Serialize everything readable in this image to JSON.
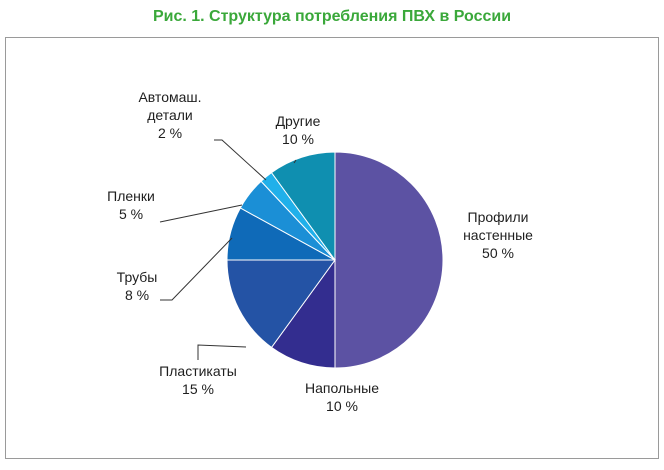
{
  "title": "Рис. 1. Структура потребления ПВХ в России",
  "chart_data": {
    "type": "pie",
    "title": "Рис. 1. Структура потребления ПВХ в России",
    "slices": [
      {
        "label_lines": [
          "Профили",
          "настенные"
        ],
        "value_text": "50 %",
        "value": 50,
        "color": "#5c52a3"
      },
      {
        "label_lines": [
          "Напольные"
        ],
        "value_text": "10 %",
        "value": 10,
        "color": "#332d8f"
      },
      {
        "label_lines": [
          "Пластикаты"
        ],
        "value_text": "15 %",
        "value": 15,
        "color": "#2453a5"
      },
      {
        "label_lines": [
          "Трубы"
        ],
        "value_text": "8 %",
        "value": 8,
        "color": "#0f6ab8"
      },
      {
        "label_lines": [
          "Пленки"
        ],
        "value_text": "5 %",
        "value": 5,
        "color": "#1b8fd6"
      },
      {
        "label_lines": [
          "Автомаш.",
          "детали"
        ],
        "value_text": "2 %",
        "value": 2,
        "color": "#20b0ea"
      },
      {
        "label_lines": [
          "Другие"
        ],
        "value_text": "10 %",
        "value": 10,
        "color": "#0f8fb0"
      }
    ],
    "start_angle_deg": 0,
    "direction": "clockwise",
    "legend": "none"
  }
}
